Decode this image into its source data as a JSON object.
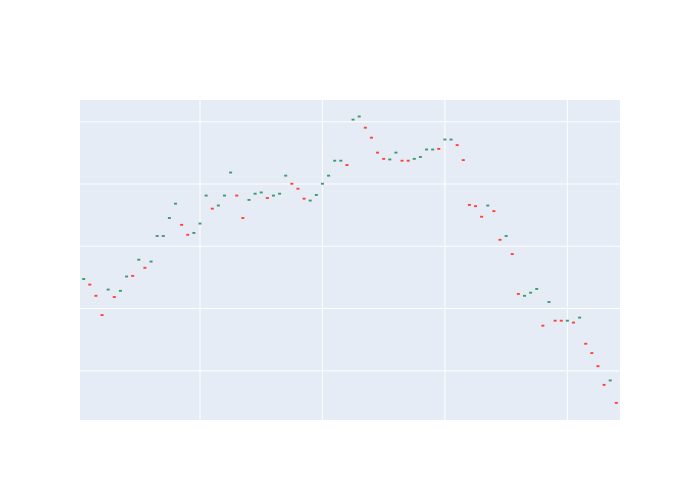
{
  "chart_data": {
    "type": "candlestick",
    "x": [
      1,
      2,
      3,
      4,
      5,
      6,
      7,
      8,
      9,
      10,
      11,
      12,
      13,
      14,
      15,
      16,
      17,
      18,
      19,
      20,
      21,
      22,
      23,
      24,
      25,
      26,
      27,
      28,
      29,
      30,
      31,
      32,
      33,
      34,
      35,
      36,
      37,
      38,
      39,
      40,
      41,
      42,
      43,
      44,
      45,
      46,
      47,
      48,
      49,
      50,
      51,
      52,
      53,
      54,
      55,
      56,
      57,
      58,
      59,
      60,
      61,
      62,
      63,
      64,
      65,
      66,
      67,
      68,
      69,
      70,
      71,
      72,
      73,
      74,
      75,
      76,
      77,
      78,
      79,
      80,
      81,
      82,
      83,
      84,
      85,
      86,
      87,
      88
    ],
    "open": [
      2.46,
      2.4,
      2.22,
      1.91,
      2.29,
      2.2,
      2.27,
      2.5,
      2.54,
      2.77,
      2.67,
      2.74,
      3.15,
      3.15,
      3.44,
      3.67,
      3.36,
      3.2,
      3.2,
      3.35,
      3.8,
      3.62,
      3.64,
      3.8,
      4.17,
      3.83,
      3.47,
      3.73,
      3.83,
      3.85,
      3.79,
      3.8,
      3.83,
      4.12,
      4.02,
      3.94,
      3.78,
      3.72,
      3.81,
      3.99,
      4.12,
      4.36,
      4.36,
      4.32,
      5.02,
      5.07,
      4.92,
      4.76,
      4.52,
      4.42,
      4.38,
      4.49,
      4.39,
      4.39,
      4.39,
      4.42,
      4.54,
      4.54,
      4.58,
      4.7,
      4.7,
      4.64,
      4.4,
      3.68,
      3.66,
      3.49,
      3.64,
      3.58,
      3.12,
      3.15,
      2.89,
      2.25,
      2.19,
      2.24,
      2.3,
      1.74,
      2.09,
      1.82,
      1.82,
      1.79,
      1.79,
      1.84,
      1.45,
      1.3,
      1.09,
      0.79,
      0.83,
      0.5
    ],
    "close": [
      2.49,
      2.37,
      2.19,
      1.88,
      2.32,
      2.17,
      2.3,
      2.53,
      2.51,
      2.8,
      2.64,
      2.77,
      3.18,
      3.18,
      3.47,
      3.7,
      3.33,
      3.17,
      3.23,
      3.38,
      3.83,
      3.59,
      3.67,
      3.83,
      4.2,
      3.8,
      3.44,
      3.76,
      3.86,
      3.88,
      3.76,
      3.83,
      3.86,
      4.15,
      3.99,
      3.91,
      3.75,
      3.75,
      3.84,
      4.02,
      4.15,
      4.39,
      4.39,
      4.29,
      5.05,
      5.1,
      4.89,
      4.73,
      4.49,
      4.39,
      4.41,
      4.52,
      4.36,
      4.36,
      4.42,
      4.45,
      4.57,
      4.57,
      4.55,
      4.73,
      4.73,
      4.61,
      4.37,
      3.65,
      3.63,
      3.46,
      3.67,
      3.55,
      3.09,
      3.18,
      2.86,
      2.22,
      2.22,
      2.27,
      2.33,
      1.71,
      2.12,
      1.79,
      1.79,
      1.82,
      1.76,
      1.87,
      1.42,
      1.27,
      1.06,
      0.76,
      0.86,
      0.47
    ],
    "increasing_color": "#3D9970",
    "decreasing_color": "#FF4136",
    "xlim": [
      0.4,
      88.6
    ],
    "xticks": [
      20,
      40,
      60,
      80
    ],
    "ylim": [
      0.21,
      5.35
    ],
    "yticks": [
      1,
      2,
      3,
      4,
      5
    ],
    "grid": true
  }
}
